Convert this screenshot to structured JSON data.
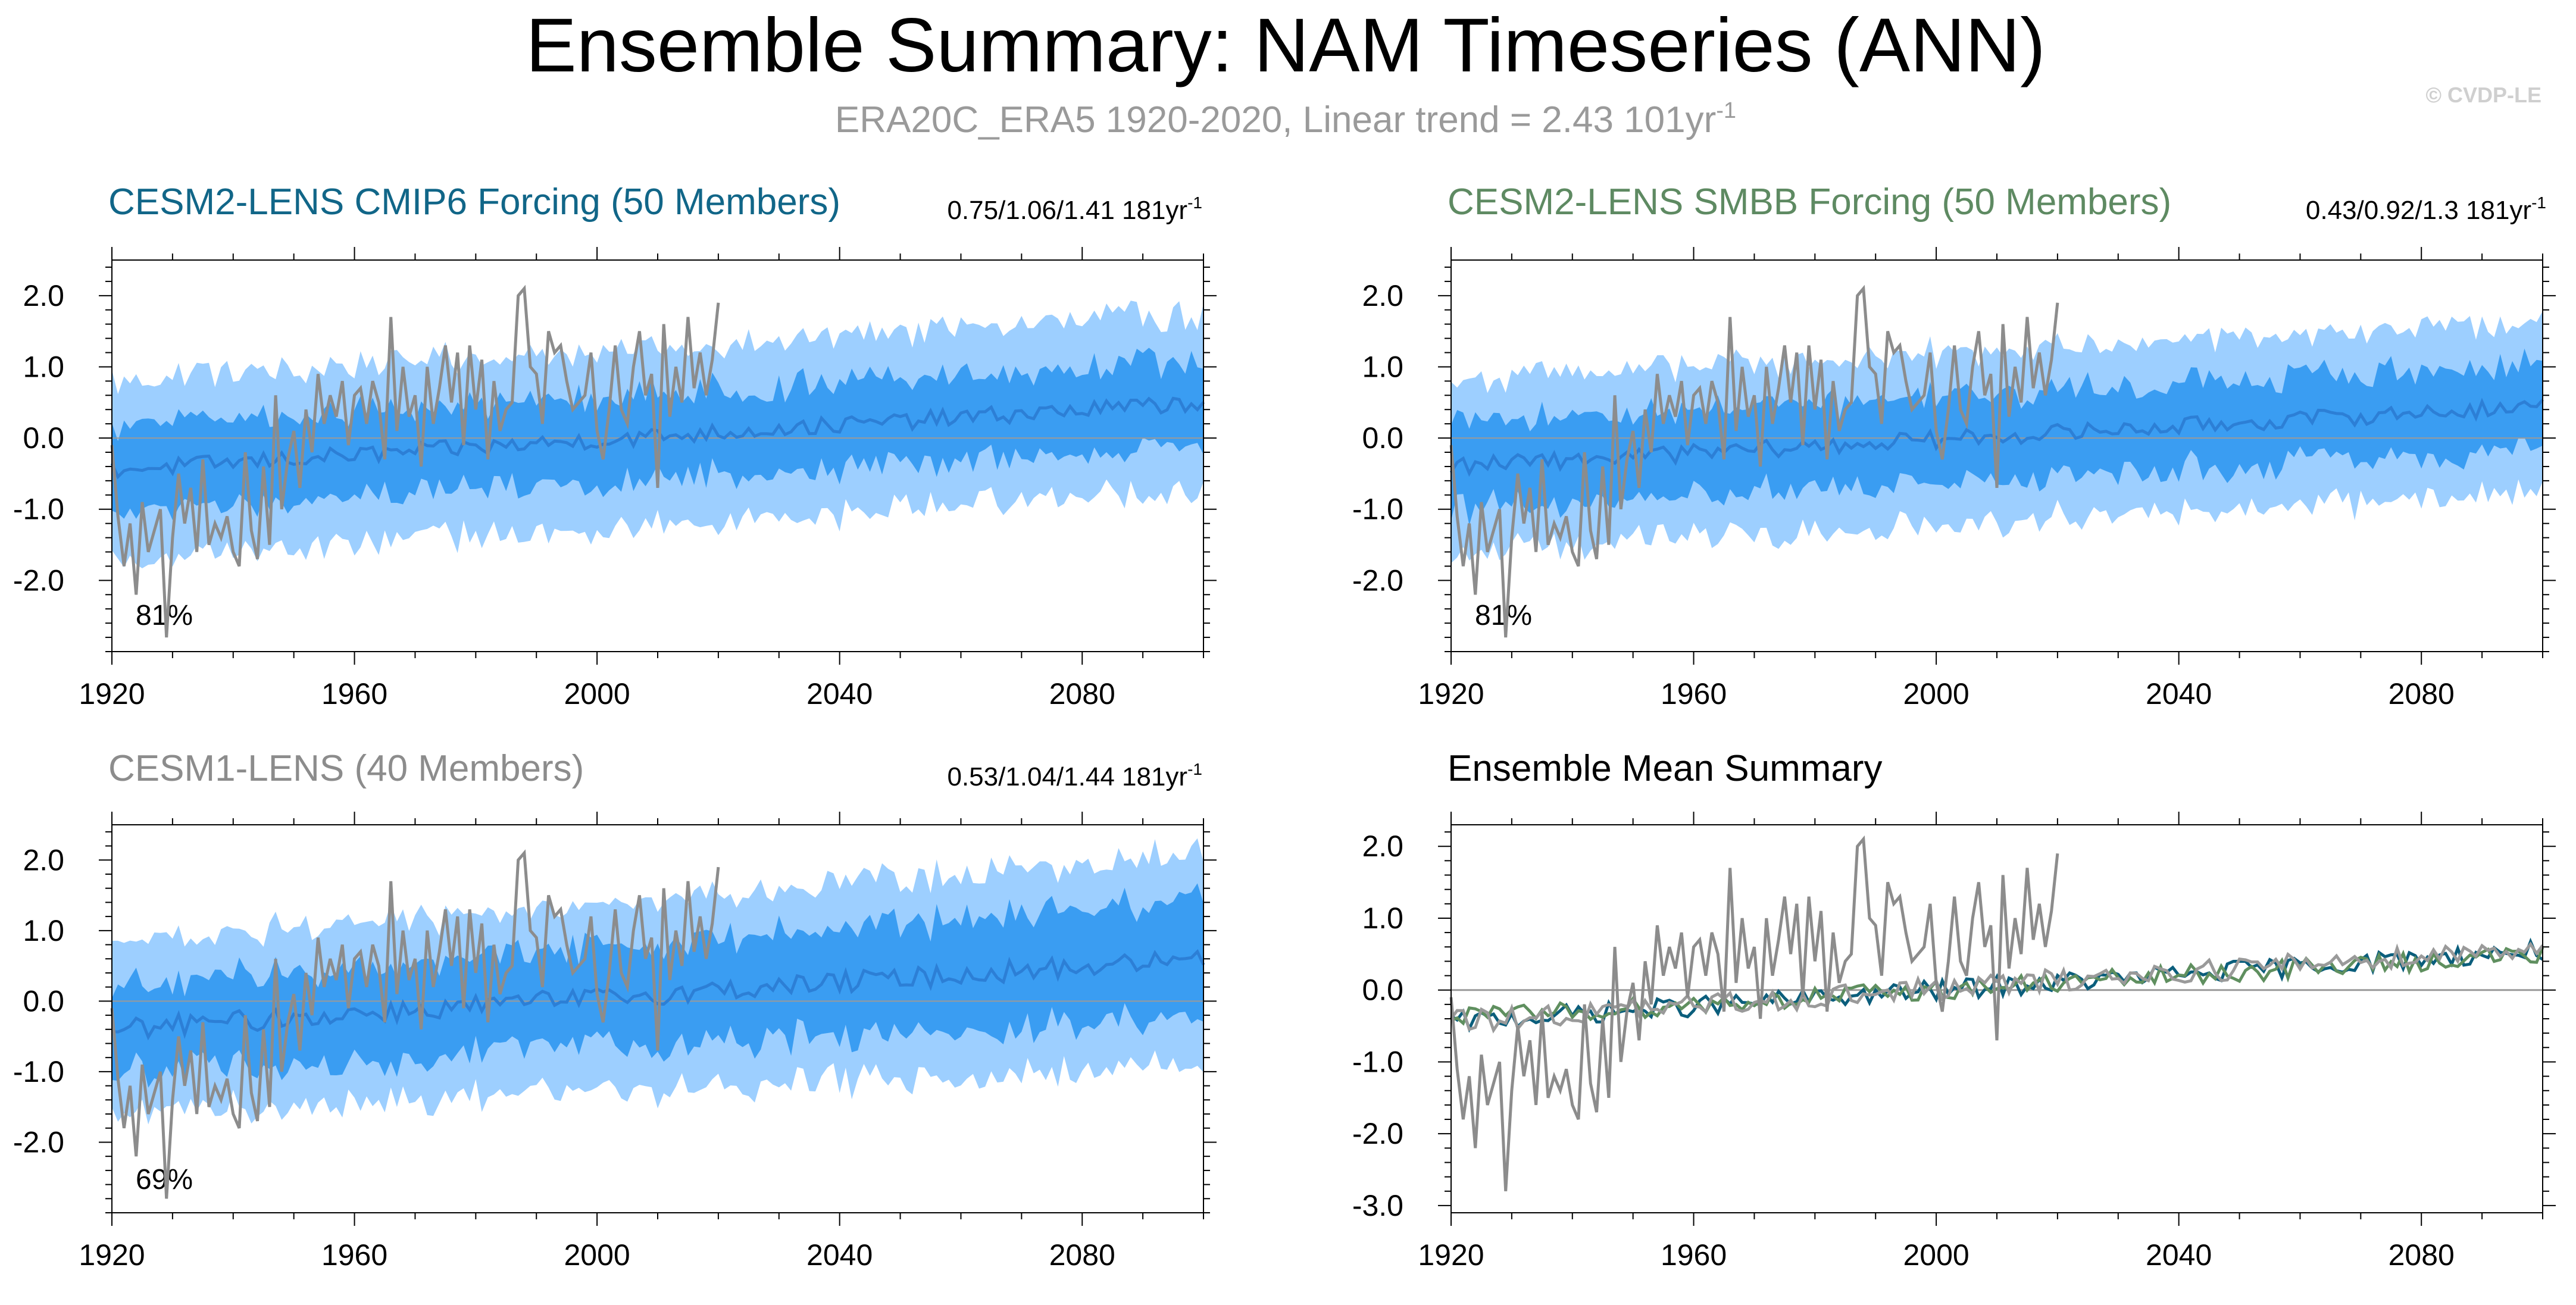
{
  "figure": {
    "title": "Ensemble Summary: NAM Timeseries (ANN)",
    "subtitle_main": "ERA20C_ERA5 1920-2020, Linear trend = 2.43 101yr",
    "subtitle_sup": "-1",
    "watermark": "© CVDP-LE"
  },
  "colors": {
    "band_outer": "#9dcfff",
    "band_inner": "#3a9df2",
    "ensemble_mean_line": "#2c7fd6",
    "observations": "#8c8c8c",
    "title_cmip6": "#116688",
    "title_smbb": "#5e8a62",
    "title_cesm1": "#8c8c8c",
    "axis": "#000000",
    "zero_line": "#9a9a9a",
    "em_cmip6": "#0b5e7c",
    "em_smbb": "#5f8f5f",
    "em_cesm1": "#9a9a9a"
  },
  "chart_data": [
    {
      "id": "cmip6",
      "type": "area",
      "title": "CESM2-LENS CMIP6 Forcing (50 Members)",
      "stats_main": "0.75/1.06/1.41 181yr",
      "stats_sup": "-1",
      "percent_label": "81%",
      "xlim": [
        1920,
        2100
      ],
      "ylim": [
        -3.0,
        2.5
      ],
      "xticks": [
        1920,
        1960,
        2000,
        2040,
        2080
      ],
      "yticks": [
        -2.0,
        -1.0,
        0.0,
        1.0,
        2.0
      ],
      "grid": false,
      "band_outer_halfwidth": [
        1.25,
        1.25
      ],
      "band_inner_halfwidth": [
        0.6,
        0.6
      ],
      "mean_trend": [
        -0.45,
        0.5
      ],
      "mean_noise_amplitude": 0.12,
      "obs_series": "observations"
    },
    {
      "id": "smbb",
      "type": "area",
      "title": "CESM2-LENS SMBB Forcing (50 Members)",
      "stats_main": "0.43/0.92/1.3 181yr",
      "stats_sup": "-1",
      "percent_label": "81%",
      "xlim": [
        1920,
        2100
      ],
      "ylim": [
        -3.0,
        2.5
      ],
      "xticks": [
        1920,
        1960,
        2000,
        2040,
        2080
      ],
      "yticks": [
        -2.0,
        -1.0,
        0.0,
        1.0,
        2.0
      ],
      "grid": false,
      "band_outer_halfwidth": [
        1.2,
        1.2
      ],
      "band_inner_halfwidth": [
        0.6,
        0.6
      ],
      "mean_trend": [
        -0.4,
        0.45
      ],
      "mean_noise_amplitude": 0.12,
      "obs_series": "observations"
    },
    {
      "id": "cesm1",
      "type": "area",
      "title": "CESM1-LENS (40 Members)",
      "stats_main": "0.53/1.04/1.44 181yr",
      "stats_sup": "-1",
      "percent_label": "69%",
      "xlim": [
        1920,
        2100
      ],
      "ylim": [
        -3.0,
        2.5
      ],
      "xticks": [
        1920,
        1960,
        2000,
        2040,
        2080
      ],
      "yticks": [
        -2.0,
        -1.0,
        0.0,
        1.0,
        2.0
      ],
      "grid": false,
      "band_outer_halfwidth": [
        1.2,
        1.5
      ],
      "band_inner_halfwidth": [
        0.6,
        0.85
      ],
      "mean_trend": [
        -0.4,
        0.6
      ],
      "mean_noise_amplitude": 0.15,
      "obs_series": "observations"
    },
    {
      "id": "summary",
      "type": "line",
      "title": "Ensemble Mean Summary",
      "xlim": [
        1920,
        2100
      ],
      "ylim": [
        -3.1,
        2.3
      ],
      "xticks": [
        1920,
        1960,
        2000,
        2040,
        2080
      ],
      "yticks": [
        -3.0,
        -2.0,
        -1.0,
        0.0,
        1.0,
        2.0
      ],
      "grid": false,
      "series": [
        {
          "key": "em_cmip6",
          "trend": [
            -0.45,
            0.55
          ],
          "noise": 0.14
        },
        {
          "key": "em_smbb",
          "trend": [
            -0.4,
            0.5
          ],
          "noise": 0.14
        },
        {
          "key": "em_cesm1",
          "trend": [
            -0.45,
            0.6
          ],
          "noise": 0.16
        }
      ],
      "obs_series": "observations"
    }
  ],
  "observations": {
    "x_start": 1920,
    "x_end": 2020,
    "y": [
      -0.1,
      -1.1,
      -1.8,
      -1.2,
      -2.2,
      -0.9,
      -1.6,
      -1.3,
      -1.0,
      -2.8,
      -1.4,
      -0.5,
      -1.2,
      -0.7,
      -1.6,
      -0.3,
      -1.5,
      -1.2,
      -1.4,
      -1.1,
      -1.6,
      -1.8,
      -0.2,
      -1.3,
      -1.7,
      -0.4,
      -1.5,
      0.6,
      -1.0,
      -0.3,
      0.1,
      -0.7,
      0.4,
      -0.2,
      0.9,
      0.2,
      0.6,
      0.3,
      0.8,
      -0.1,
      0.6,
      0.7,
      0.2,
      0.8,
      0.5,
      -0.3,
      1.7,
      0.1,
      1.0,
      0.3,
      0.6,
      -0.4,
      1.0,
      0.2,
      0.7,
      1.3,
      0.5,
      1.2,
      -0.1,
      1.3,
      0.4,
      1.1,
      -0.3,
      0.8,
      0.1,
      0.4,
      0.5,
      2.0,
      2.1,
      1.0,
      0.9,
      0.2,
      1.5,
      1.2,
      1.3,
      0.8,
      0.4,
      0.5,
      0.6,
      1.2,
      0.1,
      -0.3,
      0.4,
      1.3,
      0.4,
      0.2,
      1.0,
      1.5,
      0.6,
      0.9,
      -0.7,
      1.6,
      0.3,
      1.0,
      0.5,
      1.7,
      0.7,
      1.2,
      0.6,
      1.1,
      1.9
    ]
  }
}
